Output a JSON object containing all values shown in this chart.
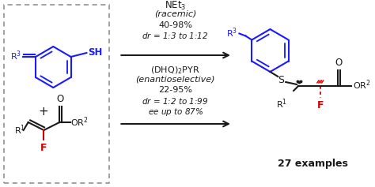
{
  "bg_color": "#ffffff",
  "blue": "#1a1aff",
  "red": "#cc0000",
  "black": "#1a1a1a",
  "gray": "#888888",
  "reagent1_line1": "NEt$_3$",
  "reagent1_line2": "(racemic)",
  "reagent1_line3": "40-98%",
  "reagent1_line4": "$dr$ = 1:3 to 1:12",
  "reagent2_line1": "(DHQ)$_2$PYR",
  "reagent2_line2": "(enantioselective)",
  "reagent2_line3": "22-95%",
  "reagent2_line4": "$dr$ = 1:2 to 1:99",
  "reagent2_line5": "$ee$ up to 87%",
  "examples": "27 examples"
}
